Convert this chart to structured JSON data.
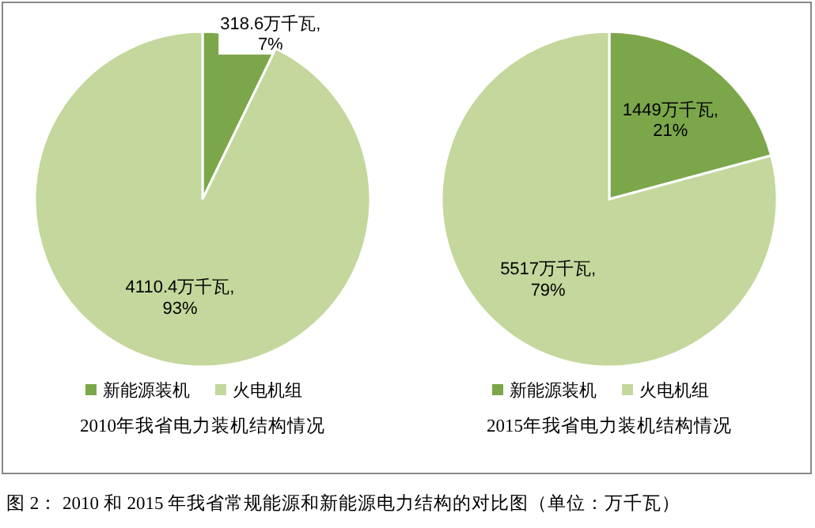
{
  "chart_data": [
    {
      "type": "pie",
      "title": "2010年我省电力装机结构情况",
      "categories": [
        "新能源装机",
        "火电机组"
      ],
      "values": [
        318.6,
        4110.4
      ],
      "colors": [
        "#7ba64a",
        "#c4d79c"
      ],
      "value_labels": [
        "318.6万千瓦,\n7%",
        "4110.4万千瓦,\n93%"
      ],
      "legend": "bottom"
    },
    {
      "type": "pie",
      "title": "2015年我省电力装机结构情况",
      "categories": [
        "新能源装机",
        "火电机组"
      ],
      "values": [
        1449,
        5517
      ],
      "colors": [
        "#7ba64a",
        "#c4d79c"
      ],
      "value_labels": [
        "1449万千瓦,\n21%",
        "5517万千瓦,\n79%"
      ],
      "legend": "bottom",
      "annotations": [
        "图 2： 2010 和 2015 年我省常规能源和新能源电力结构的对比图（单位：万千瓦）"
      ]
    }
  ]
}
